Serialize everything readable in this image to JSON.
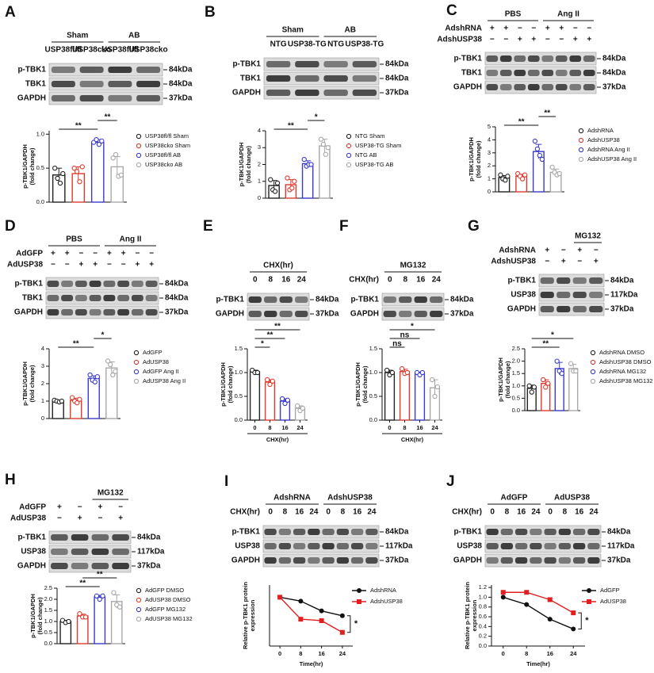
{
  "blots": [
    {
      "panel": "A",
      "groups": [
        "Sham",
        "AB"
      ],
      "lanes": [
        "USP38fl/fl",
        "USP38cko",
        "USP38fl/fl",
        "USP38cko"
      ],
      "rows": [
        {
          "label": "p-TBK1",
          "kda": "84kDa"
        },
        {
          "label": "TBK1",
          "kda": "84kDa"
        },
        {
          "label": "GAPDH",
          "kda": "37kDa"
        }
      ]
    },
    {
      "panel": "B",
      "groups": [
        "Sham",
        "AB"
      ],
      "lanes": [
        "NTG",
        "USP38-TG",
        "NTG",
        "USP38-TG"
      ],
      "rows": [
        {
          "label": "p-TBK1",
          "kda": "84kDa"
        },
        {
          "label": "TBK1",
          "kda": "84kDa"
        },
        {
          "label": "GAPDH",
          "kda": "37kDa"
        }
      ]
    },
    {
      "panel": "C",
      "groups": [
        "PBS",
        "Ang II"
      ],
      "signs": [
        {
          "label": "AdshRNA",
          "signs": [
            "+",
            "+",
            "−",
            "−",
            "+",
            "+",
            "−",
            "−"
          ]
        },
        {
          "label": "AdshUSP38",
          "signs": [
            "−",
            "−",
            "+",
            "+",
            "−",
            "−",
            "+",
            "+"
          ]
        }
      ],
      "rows": [
        {
          "label": "p-TBK1",
          "kda": "84kDa"
        },
        {
          "label": "TBK1",
          "kda": "84kDa"
        },
        {
          "label": "GAPDH",
          "kda": "37kDa"
        }
      ]
    },
    {
      "panel": "D",
      "groups": [
        "PBS",
        "Ang II"
      ],
      "signs": [
        {
          "label": "AdGFP",
          "signs": [
            "+",
            "+",
            "−",
            "−",
            "+",
            "+",
            "−",
            "−"
          ]
        },
        {
          "label": "AdUSP38",
          "signs": [
            "−",
            "−",
            "+",
            "+",
            "−",
            "−",
            "+",
            "+"
          ]
        }
      ],
      "rows": [
        {
          "label": "p-TBK1",
          "kda": "84kDa"
        },
        {
          "label": "TBK1",
          "kda": "84kDa"
        },
        {
          "label": "GAPDH",
          "kda": "37kDa"
        }
      ]
    },
    {
      "panel": "E",
      "groups": [
        "CHX(hr)"
      ],
      "lanes": [
        "0",
        "8",
        "16",
        "24"
      ],
      "rows": [
        {
          "label": "p-TBK1",
          "kda": "84kDa"
        },
        {
          "label": "GAPDH",
          "kda": "37kDa"
        }
      ]
    },
    {
      "panel": "F",
      "groups": [
        "MG132"
      ],
      "lane_title": "CHX(hr)",
      "lanes": [
        "0",
        "8",
        "16",
        "24"
      ],
      "rows": [
        {
          "label": "p-TBK1",
          "kda": "84kDa"
        },
        {
          "label": "GAPDH",
          "kda": "37kDa"
        }
      ]
    },
    {
      "panel": "G",
      "groups": [
        null,
        "MG132"
      ],
      "signs": [
        {
          "label": "AdshRNA",
          "signs": [
            "+",
            "−",
            "+",
            "−"
          ]
        },
        {
          "label": "AdshUSP38",
          "signs": [
            "−",
            "+",
            "−",
            "+"
          ]
        }
      ],
      "rows": [
        {
          "label": "p-TBK1",
          "kda": "84kDa"
        },
        {
          "label": "USP38",
          "kda": "117kDa"
        },
        {
          "label": "GAPDH",
          "kda": "37kDa"
        }
      ]
    },
    {
      "panel": "H",
      "groups": [
        null,
        "MG132"
      ],
      "signs": [
        {
          "label": "AdGFP",
          "signs": [
            "+",
            "−",
            "+",
            "−"
          ]
        },
        {
          "label": "AdUSP38",
          "signs": [
            "−",
            "+",
            "−",
            "+"
          ]
        }
      ],
      "rows": [
        {
          "label": "p-TBK1",
          "kda": "84kDa"
        },
        {
          "label": "USP38",
          "kda": "117kDa"
        },
        {
          "label": "GAPDH",
          "kda": "37kDa"
        }
      ]
    },
    {
      "panel": "I",
      "groups": [
        "AdshRNA",
        "AdshUSP38"
      ],
      "lane_title": "CHX(hr)",
      "lanes": [
        "0",
        "8",
        "16",
        "24",
        "0",
        "8",
        "16",
        "24"
      ],
      "rows": [
        {
          "label": "p-TBK1",
          "kda": "84kDa"
        },
        {
          "label": "USP38",
          "kda": "117kDa"
        },
        {
          "label": "GAPDH",
          "kda": "37kDa"
        }
      ]
    },
    {
      "panel": "J",
      "groups": [
        "AdGFP",
        "AdUSP38"
      ],
      "lane_title": "CHX(hr)",
      "lanes": [
        "0",
        "8",
        "16",
        "24",
        "0",
        "8",
        "16",
        "24"
      ],
      "rows": [
        {
          "label": "p-TBK1",
          "kda": "84kDa"
        },
        {
          "label": "USP38",
          "kda": "117kDa"
        },
        {
          "label": "GAPDH",
          "kda": "37kDa"
        }
      ]
    }
  ],
  "chart_data": [
    {
      "type": "bar",
      "ylabel": [
        "p-TBK1/GAPDH",
        "(fold change)"
      ],
      "legend": "right",
      "categories": [
        "USP38fl/fl Sham",
        "USP38cko Sham",
        "USP38fl/fl AB",
        "USP38cko AB"
      ],
      "colors": [
        "#222222",
        "#e03a2f",
        "#3a3acc",
        "#a8a8a8"
      ],
      "values": [
        0.4,
        0.42,
        0.88,
        0.52
      ],
      "errors": [
        0.1,
        0.1,
        0.04,
        0.15
      ],
      "points": [
        [
          0.5,
          0.35,
          0.28,
          0.42
        ],
        [
          0.5,
          0.45,
          0.3,
          0.52
        ],
        [
          0.88,
          0.92,
          0.85,
          0.9
        ],
        [
          0.65,
          0.7,
          0.38,
          0.4
        ]
      ],
      "ylim": [
        0,
        1.05
      ],
      "yticks": [
        {
          "value": 0,
          "label": "0.0"
        },
        {
          "value": 0.5,
          "label": "0.5"
        },
        {
          "value": 1,
          "label": "1.0"
        }
      ],
      "significance": [
        {
          "pairs": [
            0,
            2
          ],
          "label": "**"
        },
        {
          "pairs": [
            2,
            3
          ],
          "label": "**"
        }
      ]
    },
    {
      "type": "bar",
      "ylabel": [
        "p-TBK1/GAPDH",
        "(fold change)"
      ],
      "legend": "right",
      "categories": [
        "NTG Sham",
        "USP38-TG Sham",
        "NTG AB",
        "USP38-TG AB"
      ],
      "colors": [
        "#222222",
        "#e03a2f",
        "#3a3acc",
        "#a8a8a8"
      ],
      "values": [
        0.75,
        0.8,
        2.05,
        3.1
      ],
      "errors": [
        0.3,
        0.3,
        0.17,
        0.4
      ],
      "points": [
        [
          1.1,
          0.5,
          0.4,
          0.9
        ],
        [
          1.2,
          0.5,
          0.6,
          1.0
        ],
        [
          2.3,
          1.9,
          2.0,
          2.0
        ],
        [
          3.5,
          3.2,
          2.6,
          3.0
        ]
      ],
      "ylim": [
        0,
        4
      ],
      "yticks": [
        0,
        1,
        2,
        3,
        4
      ],
      "significance": [
        {
          "pairs": [
            0,
            2
          ],
          "label": "**"
        },
        {
          "pairs": [
            2,
            3
          ],
          "label": "*"
        }
      ]
    },
    {
      "type": "bar",
      "ylabel": [
        "p-TBK1/GAPDH",
        "(fold change)"
      ],
      "legend": "right",
      "categories": [
        "AdshRNA",
        "AdshUSP38",
        "AdshRNA Ang II",
        "AdshUSP38 Ang II"
      ],
      "colors": [
        "#222222",
        "#e03a2f",
        "#3a3acc",
        "#a8a8a8"
      ],
      "values": [
        1.1,
        1.2,
        3.1,
        1.5
      ],
      "errors": [
        0.15,
        0.15,
        0.55,
        0.25
      ],
      "points": [
        [
          1.3,
          1.0,
          0.9,
          1.2
        ],
        [
          1.4,
          1.2,
          1.0,
          1.3
        ],
        [
          3.9,
          3.3,
          2.8,
          2.5
        ],
        [
          1.9,
          1.5,
          1.3,
          1.4
        ]
      ],
      "ylim": [
        0,
        5
      ],
      "yticks": [
        0,
        1,
        2,
        3,
        4,
        5
      ],
      "significance": [
        {
          "pairs": [
            0,
            2
          ],
          "label": "**"
        },
        {
          "pairs": [
            2,
            3
          ],
          "label": "**"
        }
      ]
    },
    {
      "type": "bar",
      "ylabel": [
        "p-TBK1/GAPDH",
        "(fold change)"
      ],
      "legend": "right",
      "categories": [
        "AdGFP",
        "AdUSP38",
        "AdGFP Ang II",
        "AdUSP38 Ang II"
      ],
      "colors": [
        "#222222",
        "#e03a2f",
        "#3a3acc",
        "#a8a8a8"
      ],
      "values": [
        1.0,
        1.05,
        2.3,
        2.9
      ],
      "errors": [
        0.05,
        0.12,
        0.15,
        0.35
      ],
      "points": [
        [
          1.05,
          1.0,
          0.95,
          1.0
        ],
        [
          1.2,
          1.0,
          0.9,
          1.1
        ],
        [
          2.5,
          2.2,
          2.1,
          2.4
        ],
        [
          3.3,
          3.1,
          2.5,
          2.7
        ]
      ],
      "ylim": [
        0,
        4
      ],
      "yticks": [
        0,
        1,
        2,
        3,
        4
      ],
      "significance": [
        {
          "pairs": [
            0,
            2
          ],
          "label": "**"
        },
        {
          "pairs": [
            2,
            3
          ],
          "label": "*"
        }
      ]
    },
    {
      "type": "bar",
      "ylabel": [
        "p-TBK1/GAPDH",
        "(fold change)"
      ],
      "xlabel": "CHX(hr)",
      "categories": [
        "0",
        "8",
        "16",
        "24"
      ],
      "colors": [
        "#222222",
        "#e03a2f",
        "#3a3acc",
        "#a8a8a8"
      ],
      "values": [
        1.02,
        0.8,
        0.4,
        0.25
      ],
      "errors": [
        0.03,
        0.05,
        0.05,
        0.05
      ],
      "points": [
        [
          1.05,
          1.0,
          1.0
        ],
        [
          0.85,
          0.75,
          0.82
        ],
        [
          0.45,
          0.35,
          0.42
        ],
        [
          0.3,
          0.2,
          0.25
        ]
      ],
      "ylim": [
        0,
        1.5
      ],
      "yticks": [
        {
          "value": 0,
          "label": "0.0"
        },
        {
          "value": 0.5,
          "label": "0.5"
        },
        {
          "value": 1,
          "label": "1.0"
        },
        {
          "value": 1.5,
          "label": "1.5"
        }
      ],
      "significance": [
        {
          "pairs": [
            0,
            1
          ],
          "label": "*"
        },
        {
          "pairs": [
            0,
            2
          ],
          "label": "**"
        },
        {
          "pairs": [
            0,
            3
          ],
          "label": "**"
        }
      ]
    },
    {
      "type": "bar",
      "ylabel": [
        "p-TBK1/GAPDH",
        "(fold change)"
      ],
      "xlabel": "CHX(hr)",
      "categories": [
        "0",
        "8",
        "16",
        "24"
      ],
      "colors": [
        "#222222",
        "#e03a2f",
        "#3a3acc",
        "#a8a8a8"
      ],
      "values": [
        1.0,
        1.02,
        0.98,
        0.68
      ],
      "errors": [
        0.05,
        0.05,
        0.03,
        0.17
      ],
      "points": [
        [
          1.05,
          0.95,
          1.0
        ],
        [
          1.08,
          0.98,
          1.0
        ],
        [
          1.0,
          0.95,
          1.0
        ],
        [
          0.85,
          0.5,
          0.7
        ]
      ],
      "ylim": [
        0,
        1.5
      ],
      "yticks": [
        {
          "value": 0,
          "label": "0.0"
        },
        {
          "value": 0.5,
          "label": "0.5"
        },
        {
          "value": 1,
          "label": "1.0"
        },
        {
          "value": 1.5,
          "label": "1.5"
        }
      ],
      "significance": [
        {
          "pairs": [
            0,
            1
          ],
          "label": "ns"
        },
        {
          "pairs": [
            0,
            2
          ],
          "label": "ns"
        },
        {
          "pairs": [
            0,
            3
          ],
          "label": "*"
        }
      ]
    },
    {
      "type": "bar",
      "ylabel": [
        "p-TBK1/GAPDH",
        "(fold change)"
      ],
      "legend": "right",
      "categories": [
        "AdshRNA DMSO",
        "AdshUSP38 DMSO",
        "AdshRNA MG132",
        "AdshUSP38 MG132"
      ],
      "colors": [
        "#222222",
        "#e03a2f",
        "#3a3acc",
        "#a8a8a8"
      ],
      "values": [
        0.9,
        1.1,
        1.7,
        1.7
      ],
      "errors": [
        0.13,
        0.15,
        0.25,
        0.17
      ],
      "points": [
        [
          1.0,
          0.75,
          0.95
        ],
        [
          1.25,
          0.95,
          1.1
        ],
        [
          2.0,
          1.6,
          1.5
        ],
        [
          1.9,
          1.6,
          1.6
        ]
      ],
      "ylim": [
        0,
        2.5
      ],
      "yticks": [
        {
          "value": 0,
          "label": "0.0"
        },
        {
          "value": 0.5,
          "label": "0.5"
        },
        {
          "value": 1,
          "label": "1.0"
        },
        {
          "value": 1.5,
          "label": "1.5"
        },
        {
          "value": 2,
          "label": "2.0"
        },
        {
          "value": 2.5,
          "label": "2.5"
        }
      ],
      "significance": [
        {
          "pairs": [
            0,
            2
          ],
          "label": "**"
        },
        {
          "pairs": [
            0,
            3
          ],
          "label": "*"
        }
      ]
    },
    {
      "type": "bar",
      "ylabel": [
        "p-TBK1/GAPDH",
        "(fold change)"
      ],
      "legend": "right",
      "categories": [
        "AdGFP DMSO",
        "AdUSP38 DMSO",
        "AdGFP MG132",
        "AdUSP38 MG132"
      ],
      "colors": [
        "#222222",
        "#e03a2f",
        "#3a3acc",
        "#a8a8a8"
      ],
      "values": [
        1.0,
        1.25,
        2.1,
        1.9
      ],
      "errors": [
        0.05,
        0.08,
        0.08,
        0.3
      ],
      "points": [
        [
          1.05,
          0.95,
          1.0
        ],
        [
          1.35,
          1.2,
          1.2
        ],
        [
          2.15,
          2.0,
          2.15
        ],
        [
          2.3,
          1.75,
          1.65
        ]
      ],
      "ylim": [
        0,
        2.5
      ],
      "yticks": [
        {
          "value": 0,
          "label": "0.0"
        },
        {
          "value": 0.5,
          "label": "0.5"
        },
        {
          "value": 1,
          "label": "1.0"
        },
        {
          "value": 1.5,
          "label": "1.5"
        },
        {
          "value": 2,
          "label": "2.0"
        },
        {
          "value": 2.5,
          "label": "2.5"
        }
      ],
      "significance": [
        {
          "pairs": [
            0,
            2
          ],
          "label": "**"
        },
        {
          "pairs": [
            1,
            3
          ],
          "label": "**"
        }
      ]
    },
    {
      "type": "line",
      "ylabel": [
        "Relative p-TBK1 protein",
        "expression"
      ],
      "xlabel": "Time(hr)",
      "legend": "right",
      "x": [
        0,
        8,
        16,
        24
      ],
      "xlim": [
        -4,
        28
      ],
      "xticks": [
        0,
        8,
        16,
        24
      ],
      "ylim": [
        0,
        1.25
      ],
      "series": [
        {
          "name": "AdshRNA",
          "color": "#111111",
          "marker": "circle",
          "values": [
            1.0,
            0.92,
            0.72,
            0.62
          ]
        },
        {
          "name": "AdshUSP38",
          "color": "#e02020",
          "marker": "square",
          "values": [
            1.0,
            0.55,
            0.52,
            0.28
          ]
        }
      ],
      "annotation": "*"
    },
    {
      "type": "line",
      "ylabel": [
        "Relative p-TBK1 protein",
        "expression"
      ],
      "xlabel": "Time(hr)",
      "legend": "right",
      "x": [
        0,
        8,
        16,
        24
      ],
      "xlim": [
        -4,
        28
      ],
      "xticks": [
        0,
        8,
        16,
        24
      ],
      "ylim": [
        0,
        1.25
      ],
      "yticks": [
        {
          "value": 0,
          "label": "0.0"
        },
        {
          "value": 0.2,
          "label": "0.2"
        },
        {
          "value": 0.4,
          "label": "0.4"
        },
        {
          "value": 0.6,
          "label": "0.6"
        },
        {
          "value": 0.8,
          "label": "0.8"
        },
        {
          "value": 1,
          "label": "1.0"
        },
        {
          "value": 1.2,
          "label": "1.2"
        }
      ],
      "series": [
        {
          "name": "AdGFP",
          "color": "#111111",
          "marker": "circle",
          "values": [
            1.0,
            0.85,
            0.55,
            0.35
          ]
        },
        {
          "name": "AdUSP38",
          "color": "#e02020",
          "marker": "square",
          "values": [
            1.1,
            1.1,
            0.95,
            0.68
          ]
        }
      ],
      "annotation": "*"
    }
  ]
}
